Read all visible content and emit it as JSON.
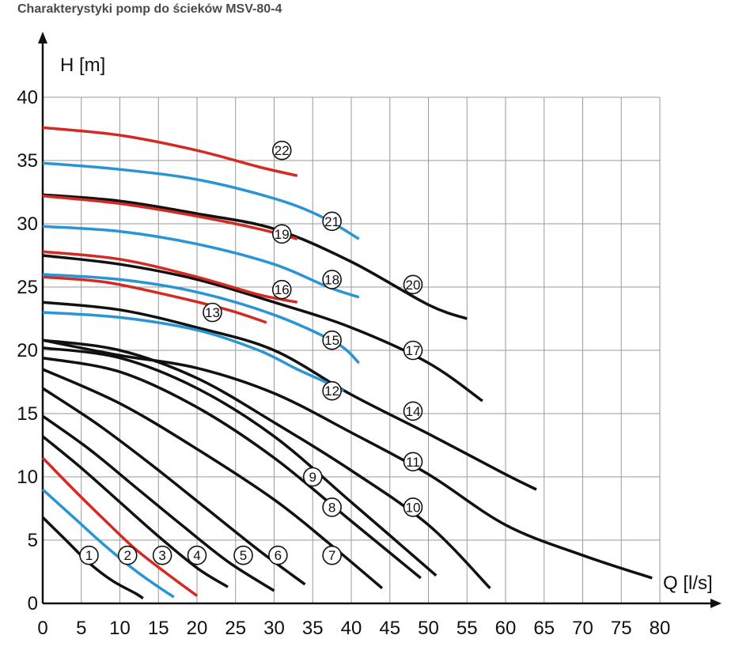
{
  "title": "Charakterystyki pomp do ścieków MSV-80-4",
  "chart_data": {
    "type": "line",
    "title": "Charakterystyki pomp do ścieków MSV-80-4",
    "xlabel": "Q [l/s]",
    "ylabel": "H [m]",
    "xlim": [
      0,
      80
    ],
    "ylim": [
      0,
      40
    ],
    "xticks": [
      0,
      5,
      10,
      15,
      20,
      25,
      30,
      35,
      40,
      45,
      50,
      55,
      60,
      65,
      70,
      75,
      80
    ],
    "yticks": [
      0,
      5,
      10,
      15,
      20,
      25,
      30,
      35,
      40
    ],
    "grid": true,
    "colors": {
      "black": "#111111",
      "blue": "#2a95d4",
      "red": "#d42a24"
    },
    "series": [
      {
        "name": "1",
        "color": "black",
        "points": [
          [
            0,
            6.8
          ],
          [
            3,
            5.0
          ],
          [
            6,
            3.2
          ],
          [
            9,
            1.8
          ],
          [
            12,
            0.8
          ],
          [
            13,
            0.4
          ]
        ],
        "label_at": [
          6,
          3.8
        ]
      },
      {
        "name": "2",
        "color": "blue",
        "points": [
          [
            0,
            9.0
          ],
          [
            4,
            6.8
          ],
          [
            8,
            4.6
          ],
          [
            12,
            2.6
          ],
          [
            15,
            1.3
          ],
          [
            17,
            0.5
          ]
        ],
        "label_at": [
          11,
          3.8
        ]
      },
      {
        "name": "3",
        "color": "red",
        "points": [
          [
            0,
            11.5
          ],
          [
            4,
            9.0
          ],
          [
            8,
            6.6
          ],
          [
            12,
            4.3
          ],
          [
            16,
            2.4
          ],
          [
            20,
            0.6
          ]
        ],
        "label_at": [
          15.5,
          3.8
        ]
      },
      {
        "name": "4",
        "color": "black",
        "points": [
          [
            0,
            13.2
          ],
          [
            5,
            10.7
          ],
          [
            10,
            8.0
          ],
          [
            15,
            5.3
          ],
          [
            20,
            2.8
          ],
          [
            24,
            1.3
          ]
        ],
        "label_at": [
          20,
          3.8
        ]
      },
      {
        "name": "5",
        "color": "black",
        "points": [
          [
            0,
            14.8
          ],
          [
            6,
            12.2
          ],
          [
            12,
            9.2
          ],
          [
            18,
            6.2
          ],
          [
            24,
            3.3
          ],
          [
            30,
            1.0
          ]
        ],
        "label_at": [
          26,
          3.8
        ]
      },
      {
        "name": "6",
        "color": "black",
        "points": [
          [
            0,
            17.0
          ],
          [
            7,
            14.2
          ],
          [
            14,
            11.0
          ],
          [
            21,
            7.6
          ],
          [
            28,
            4.2
          ],
          [
            34,
            1.5
          ]
        ],
        "label_at": [
          30.5,
          3.8
        ]
      },
      {
        "name": "7",
        "color": "black",
        "points": [
          [
            0,
            18.5
          ],
          [
            10,
            15.8
          ],
          [
            20,
            12.2
          ],
          [
            30,
            8.2
          ],
          [
            37,
            4.8
          ],
          [
            44,
            1.2
          ]
        ],
        "label_at": [
          37.5,
          3.8
        ]
      },
      {
        "name": "8",
        "color": "black",
        "points": [
          [
            0,
            19.4
          ],
          [
            10,
            18.3
          ],
          [
            20,
            15.5
          ],
          [
            30,
            11.5
          ],
          [
            40,
            6.5
          ],
          [
            49,
            2.0
          ]
        ],
        "label_at": [
          37.5,
          7.6
        ]
      },
      {
        "name": "9",
        "color": "black",
        "points": [
          [
            0,
            20.2
          ],
          [
            10,
            19.4
          ],
          [
            20,
            17.0
          ],
          [
            30,
            13.2
          ],
          [
            40,
            8.0
          ],
          [
            51,
            2.2
          ]
        ],
        "label_at": [
          35,
          10.0
        ]
      },
      {
        "name": "10",
        "color": "black",
        "points": [
          [
            0,
            20.8
          ],
          [
            10,
            20.0
          ],
          [
            20,
            17.8
          ],
          [
            30,
            14.3
          ],
          [
            40,
            10.5
          ],
          [
            50,
            6.2
          ],
          [
            58,
            1.2
          ]
        ],
        "label_at": [
          48,
          7.6
        ]
      },
      {
        "name": "11",
        "color": "black",
        "points": [
          [
            0,
            20.8
          ],
          [
            10,
            19.6
          ],
          [
            20,
            18.6
          ],
          [
            30,
            16.6
          ],
          [
            40,
            13.5
          ],
          [
            50,
            10.2
          ],
          [
            60,
            6.2
          ],
          [
            70,
            3.8
          ],
          [
            79,
            2.0
          ]
        ],
        "label_at": [
          48,
          11.2
        ]
      },
      {
        "name": "12",
        "color": "blue",
        "points": [
          [
            0,
            23.0
          ],
          [
            10,
            22.6
          ],
          [
            20,
            21.6
          ],
          [
            28,
            20.0
          ],
          [
            33,
            18.5
          ],
          [
            37,
            17.4
          ],
          [
            39,
            16.8
          ]
        ],
        "label_at": [
          37.5,
          16.8
        ]
      },
      {
        "name": "13",
        "color": "red",
        "points": [
          [
            0,
            25.8
          ],
          [
            8,
            25.4
          ],
          [
            16,
            24.4
          ],
          [
            24,
            23.2
          ],
          [
            29,
            22.2
          ]
        ],
        "label_at": [
          22,
          23.0
        ]
      },
      {
        "name": "14",
        "color": "black",
        "points": [
          [
            0,
            23.8
          ],
          [
            10,
            23.2
          ],
          [
            20,
            21.8
          ],
          [
            30,
            20.0
          ],
          [
            40,
            16.5
          ],
          [
            50,
            13.4
          ],
          [
            60,
            10.2
          ],
          [
            64,
            9.0
          ]
        ],
        "label_at": [
          48,
          15.2
        ]
      },
      {
        "name": "15",
        "color": "blue",
        "points": [
          [
            0,
            26.0
          ],
          [
            10,
            25.6
          ],
          [
            20,
            24.6
          ],
          [
            30,
            22.8
          ],
          [
            38,
            20.6
          ],
          [
            41,
            19.0
          ]
        ],
        "label_at": [
          37.5,
          20.8
        ]
      },
      {
        "name": "16",
        "color": "red",
        "points": [
          [
            0,
            27.8
          ],
          [
            10,
            27.2
          ],
          [
            20,
            25.8
          ],
          [
            28,
            24.4
          ],
          [
            33,
            23.8
          ]
        ],
        "label_at": [
          31,
          24.8
        ]
      },
      {
        "name": "17",
        "color": "black",
        "points": [
          [
            0,
            27.5
          ],
          [
            10,
            26.8
          ],
          [
            20,
            25.6
          ],
          [
            30,
            23.8
          ],
          [
            40,
            21.8
          ],
          [
            50,
            19.0
          ],
          [
            57,
            16.0
          ]
        ],
        "label_at": [
          48,
          20.0
        ]
      },
      {
        "name": "18",
        "color": "blue",
        "points": [
          [
            0,
            29.8
          ],
          [
            10,
            29.4
          ],
          [
            20,
            28.4
          ],
          [
            30,
            26.8
          ],
          [
            37,
            25.0
          ],
          [
            41,
            24.2
          ]
        ],
        "label_at": [
          37.5,
          25.6
        ]
      },
      {
        "name": "19",
        "color": "red",
        "points": [
          [
            0,
            32.2
          ],
          [
            10,
            31.6
          ],
          [
            20,
            30.6
          ],
          [
            28,
            29.6
          ],
          [
            33,
            28.8
          ]
        ],
        "label_at": [
          31,
          29.2
        ]
      },
      {
        "name": "20",
        "color": "black",
        "points": [
          [
            0,
            32.3
          ],
          [
            10,
            31.8
          ],
          [
            20,
            30.8
          ],
          [
            30,
            29.6
          ],
          [
            40,
            27.0
          ],
          [
            50,
            23.6
          ],
          [
            55,
            22.5
          ]
        ],
        "label_at": [
          48,
          25.2
        ]
      },
      {
        "name": "21",
        "color": "blue",
        "points": [
          [
            0,
            34.8
          ],
          [
            10,
            34.3
          ],
          [
            20,
            33.5
          ],
          [
            30,
            32.0
          ],
          [
            36,
            30.6
          ],
          [
            41,
            28.8
          ]
        ],
        "label_at": [
          37.5,
          30.2
        ]
      },
      {
        "name": "22",
        "color": "red",
        "points": [
          [
            0,
            37.6
          ],
          [
            10,
            37.0
          ],
          [
            20,
            35.8
          ],
          [
            28,
            34.5
          ],
          [
            33,
            33.8
          ]
        ],
        "label_at": [
          31,
          35.8
        ]
      }
    ]
  }
}
